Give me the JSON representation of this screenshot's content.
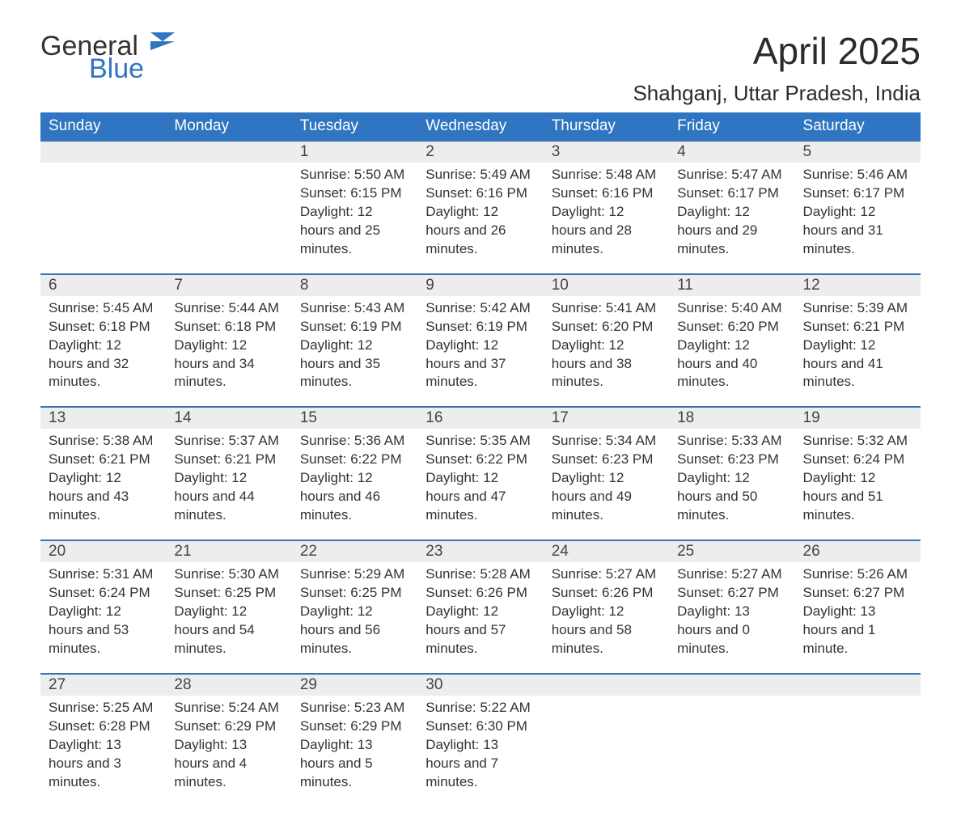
{
  "logo": {
    "text1": "General",
    "text2": "Blue",
    "brand_color": "#2f75c1"
  },
  "title": "April 2025",
  "location": "Shahganj, Uttar Pradesh, India",
  "colors": {
    "header_bg": "#2f75c1",
    "header_text": "#ffffff",
    "daynum_bg": "#ededed",
    "row_border": "#3a72b5",
    "text": "#333333",
    "background": "#ffffff"
  },
  "weekdays": [
    "Sunday",
    "Monday",
    "Tuesday",
    "Wednesday",
    "Thursday",
    "Friday",
    "Saturday"
  ],
  "weeks": [
    [
      null,
      null,
      {
        "n": "1",
        "sr": "5:50 AM",
        "ss": "6:15 PM",
        "dl": "12 hours and 25 minutes."
      },
      {
        "n": "2",
        "sr": "5:49 AM",
        "ss": "6:16 PM",
        "dl": "12 hours and 26 minutes."
      },
      {
        "n": "3",
        "sr": "5:48 AM",
        "ss": "6:16 PM",
        "dl": "12 hours and 28 minutes."
      },
      {
        "n": "4",
        "sr": "5:47 AM",
        "ss": "6:17 PM",
        "dl": "12 hours and 29 minutes."
      },
      {
        "n": "5",
        "sr": "5:46 AM",
        "ss": "6:17 PM",
        "dl": "12 hours and 31 minutes."
      }
    ],
    [
      {
        "n": "6",
        "sr": "5:45 AM",
        "ss": "6:18 PM",
        "dl": "12 hours and 32 minutes."
      },
      {
        "n": "7",
        "sr": "5:44 AM",
        "ss": "6:18 PM",
        "dl": "12 hours and 34 minutes."
      },
      {
        "n": "8",
        "sr": "5:43 AM",
        "ss": "6:19 PM",
        "dl": "12 hours and 35 minutes."
      },
      {
        "n": "9",
        "sr": "5:42 AM",
        "ss": "6:19 PM",
        "dl": "12 hours and 37 minutes."
      },
      {
        "n": "10",
        "sr": "5:41 AM",
        "ss": "6:20 PM",
        "dl": "12 hours and 38 minutes."
      },
      {
        "n": "11",
        "sr": "5:40 AM",
        "ss": "6:20 PM",
        "dl": "12 hours and 40 minutes."
      },
      {
        "n": "12",
        "sr": "5:39 AM",
        "ss": "6:21 PM",
        "dl": "12 hours and 41 minutes."
      }
    ],
    [
      {
        "n": "13",
        "sr": "5:38 AM",
        "ss": "6:21 PM",
        "dl": "12 hours and 43 minutes."
      },
      {
        "n": "14",
        "sr": "5:37 AM",
        "ss": "6:21 PM",
        "dl": "12 hours and 44 minutes."
      },
      {
        "n": "15",
        "sr": "5:36 AM",
        "ss": "6:22 PM",
        "dl": "12 hours and 46 minutes."
      },
      {
        "n": "16",
        "sr": "5:35 AM",
        "ss": "6:22 PM",
        "dl": "12 hours and 47 minutes."
      },
      {
        "n": "17",
        "sr": "5:34 AM",
        "ss": "6:23 PM",
        "dl": "12 hours and 49 minutes."
      },
      {
        "n": "18",
        "sr": "5:33 AM",
        "ss": "6:23 PM",
        "dl": "12 hours and 50 minutes."
      },
      {
        "n": "19",
        "sr": "5:32 AM",
        "ss": "6:24 PM",
        "dl": "12 hours and 51 minutes."
      }
    ],
    [
      {
        "n": "20",
        "sr": "5:31 AM",
        "ss": "6:24 PM",
        "dl": "12 hours and 53 minutes."
      },
      {
        "n": "21",
        "sr": "5:30 AM",
        "ss": "6:25 PM",
        "dl": "12 hours and 54 minutes."
      },
      {
        "n": "22",
        "sr": "5:29 AM",
        "ss": "6:25 PM",
        "dl": "12 hours and 56 minutes."
      },
      {
        "n": "23",
        "sr": "5:28 AM",
        "ss": "6:26 PM",
        "dl": "12 hours and 57 minutes."
      },
      {
        "n": "24",
        "sr": "5:27 AM",
        "ss": "6:26 PM",
        "dl": "12 hours and 58 minutes."
      },
      {
        "n": "25",
        "sr": "5:27 AM",
        "ss": "6:27 PM",
        "dl": "13 hours and 0 minutes."
      },
      {
        "n": "26",
        "sr": "5:26 AM",
        "ss": "6:27 PM",
        "dl": "13 hours and 1 minute."
      }
    ],
    [
      {
        "n": "27",
        "sr": "5:25 AM",
        "ss": "6:28 PM",
        "dl": "13 hours and 3 minutes."
      },
      {
        "n": "28",
        "sr": "5:24 AM",
        "ss": "6:29 PM",
        "dl": "13 hours and 4 minutes."
      },
      {
        "n": "29",
        "sr": "5:23 AM",
        "ss": "6:29 PM",
        "dl": "13 hours and 5 minutes."
      },
      {
        "n": "30",
        "sr": "5:22 AM",
        "ss": "6:30 PM",
        "dl": "13 hours and 7 minutes."
      },
      null,
      null,
      null
    ]
  ],
  "labels": {
    "sunrise": "Sunrise: ",
    "sunset": "Sunset: ",
    "daylight": "Daylight: "
  }
}
